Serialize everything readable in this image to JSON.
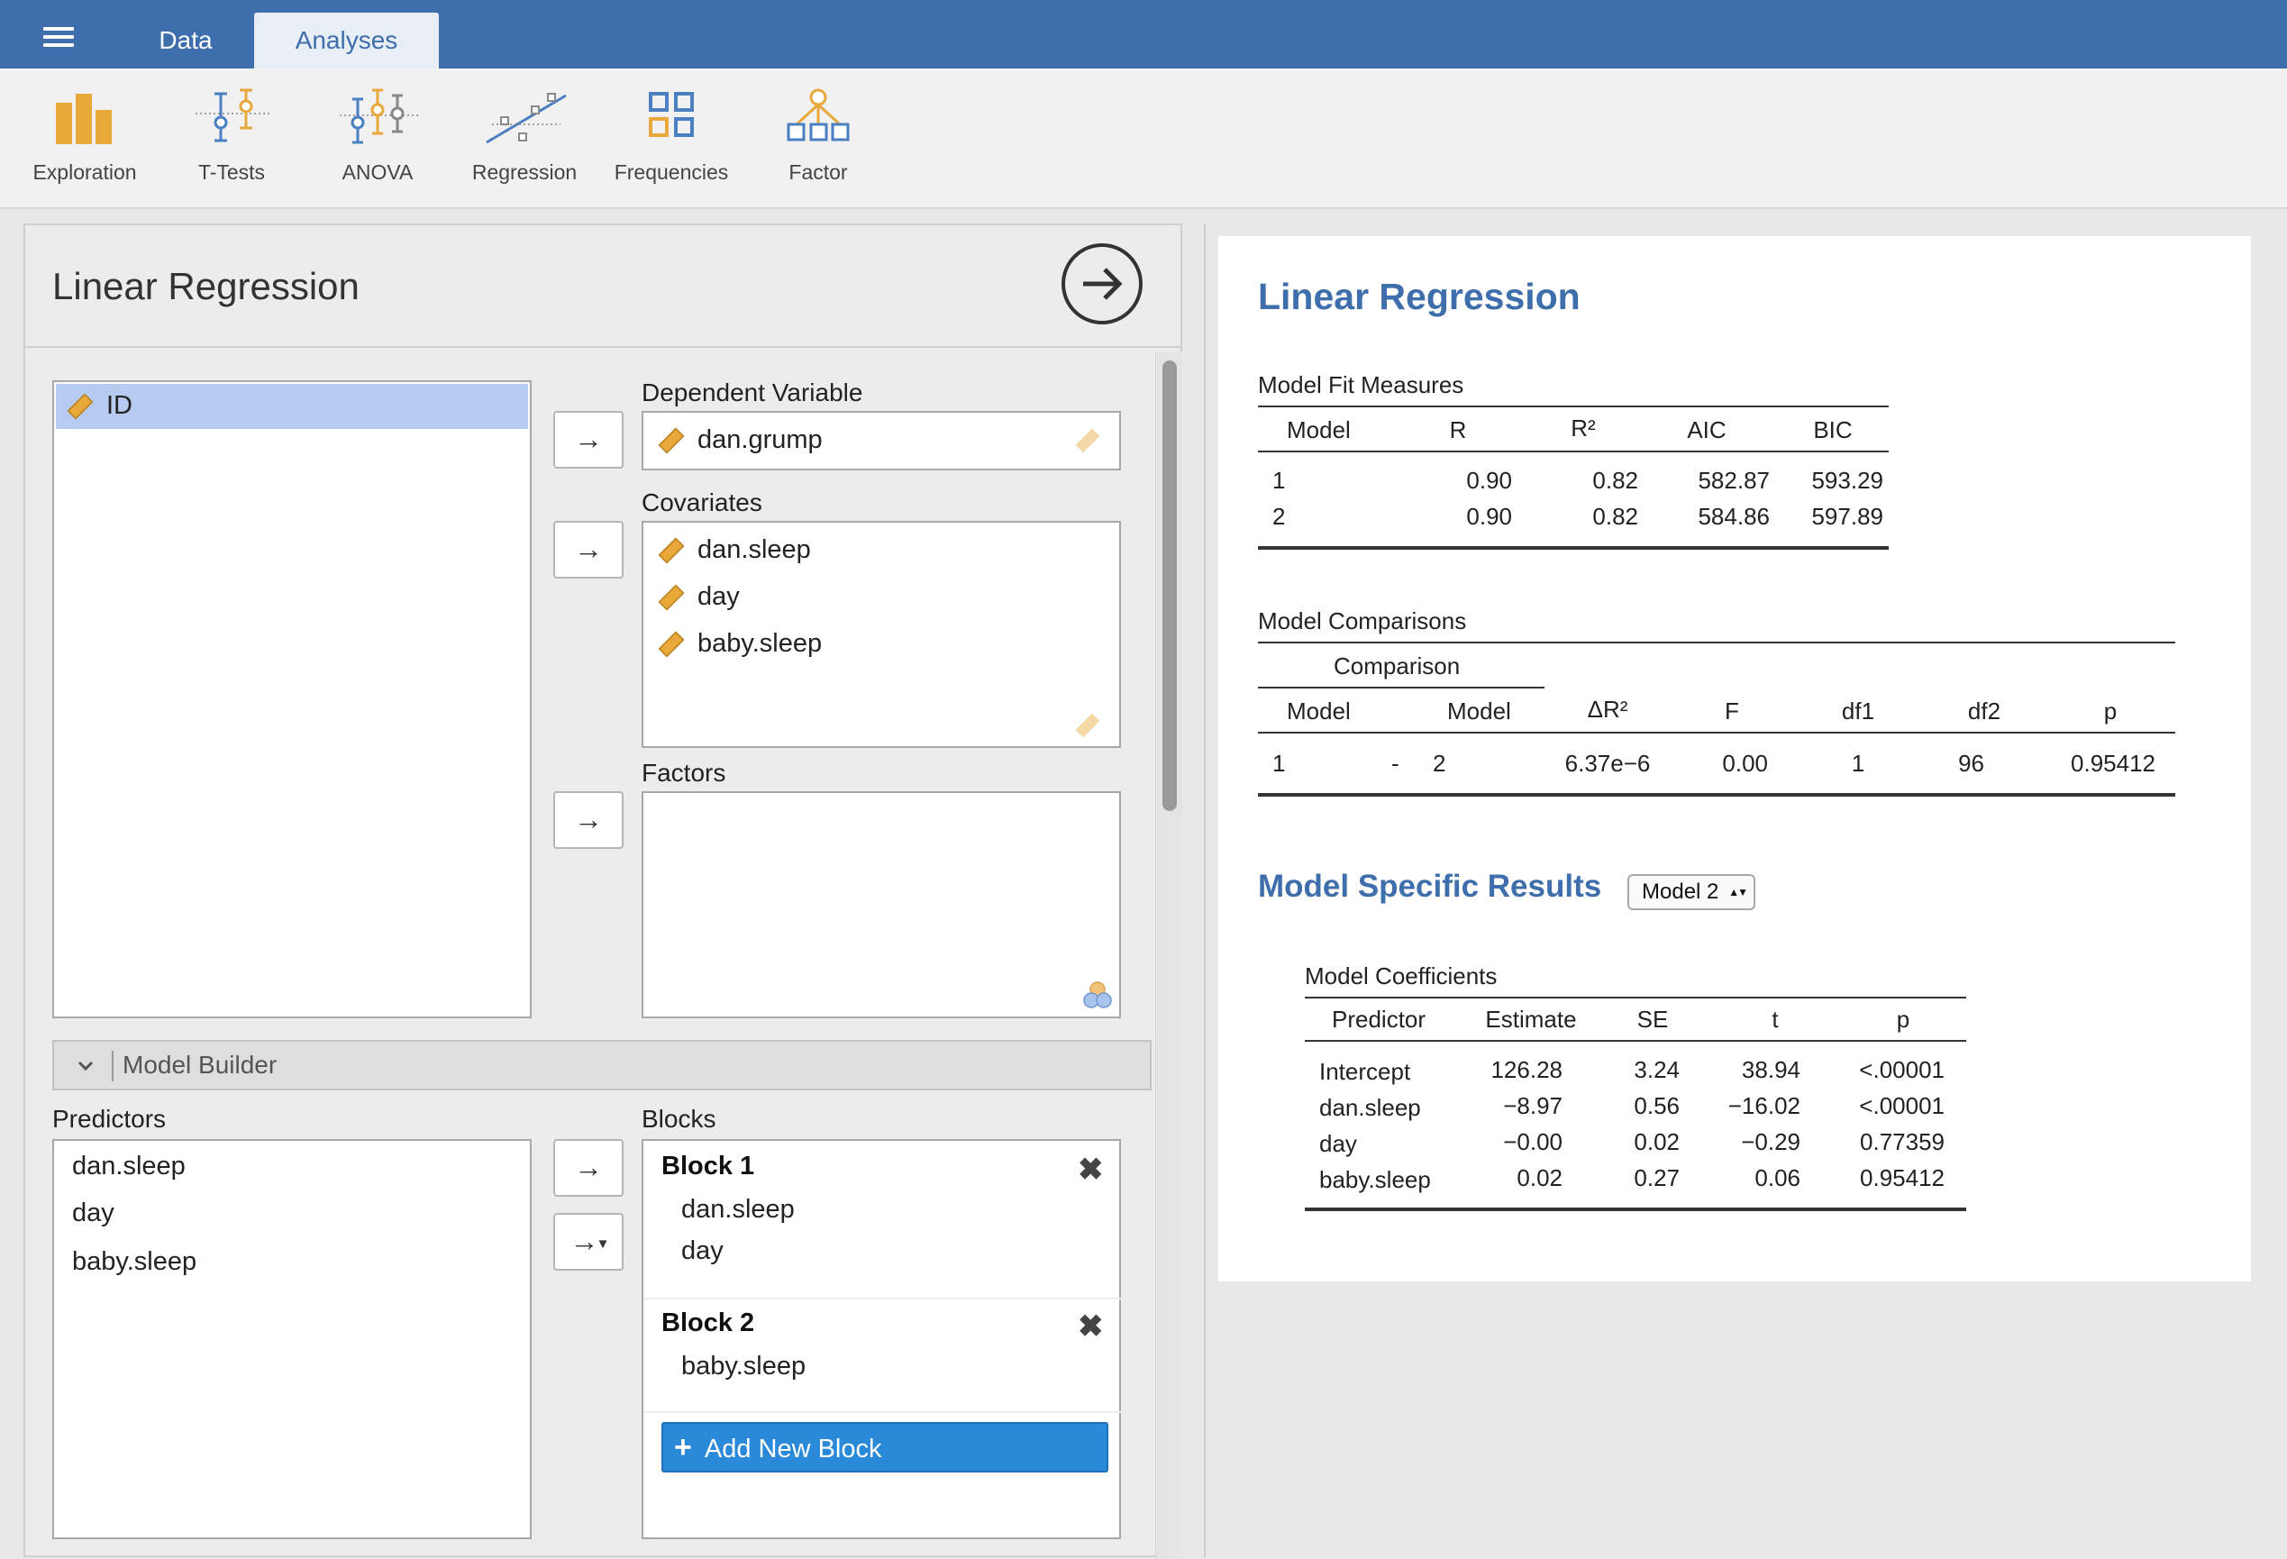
{
  "topbar": {
    "tabs": [
      {
        "label": "Data"
      },
      {
        "label": "Analyses"
      }
    ]
  },
  "ribbon": {
    "items": [
      {
        "label": "Exploration",
        "icon": "bar-chart-icon"
      },
      {
        "label": "T-Tests",
        "icon": "ttest-icon"
      },
      {
        "label": "ANOVA",
        "icon": "anova-icon"
      },
      {
        "label": "Regression",
        "icon": "regression-icon"
      },
      {
        "label": "Frequencies",
        "icon": "frequencies-icon"
      },
      {
        "label": "Factor",
        "icon": "factor-icon"
      }
    ]
  },
  "options": {
    "title": "Linear Regression",
    "variables": [
      "ID"
    ],
    "dependent_label": "Dependent Variable",
    "dependent": "dan.grump",
    "covariates_label": "Covariates",
    "covariates": [
      "dan.sleep",
      "day",
      "baby.sleep"
    ],
    "factors_label": "Factors",
    "model_builder_label": "Model Builder",
    "predictors_label": "Predictors",
    "predictors": [
      "dan.sleep",
      "day",
      "baby.sleep"
    ],
    "blocks_label": "Blocks",
    "blocks": [
      {
        "title": "Block 1",
        "items": [
          "dan.sleep",
          "day"
        ]
      },
      {
        "title": "Block 2",
        "items": [
          "baby.sleep"
        ]
      }
    ],
    "add_block_label": "Add New Block",
    "arrow_symbol": "→",
    "close_symbol": "✖"
  },
  "results": {
    "title": "Linear Regression",
    "fit": {
      "title": "Model Fit Measures",
      "headers": [
        "Model",
        "R",
        "R²",
        "AIC",
        "BIC"
      ],
      "rows": [
        [
          "1",
          "0.90",
          "0.82",
          "582.87",
          "593.29"
        ],
        [
          "2",
          "0.90",
          "0.82",
          "584.86",
          "597.89"
        ]
      ]
    },
    "comparisons": {
      "title": "Model Comparisons",
      "group_header": "Comparison",
      "headers": [
        "Model",
        "Model",
        "ΔR²",
        "F",
        "df1",
        "df2",
        "p"
      ],
      "rows": [
        [
          "1",
          "-",
          "2",
          "6.37e−6",
          "0.00",
          "1",
          "96",
          "0.95412"
        ]
      ]
    },
    "specific": {
      "title": "Model Specific Results",
      "select_value": "Model 2",
      "select_arrows": "▲▼"
    },
    "coefficients": {
      "title": "Model Coefficients",
      "headers": [
        "Predictor",
        "Estimate",
        "SE",
        "t",
        "p"
      ],
      "rows": [
        [
          "Intercept",
          "126.28",
          "3.24",
          "38.94",
          "<.00001"
        ],
        [
          "dan.sleep",
          "−8.97",
          "0.56",
          "−16.02",
          "<.00001"
        ],
        [
          "day",
          "−0.00",
          "0.02",
          "−0.29",
          "0.77359"
        ],
        [
          "baby.sleep",
          "0.02",
          "0.27",
          "0.06",
          "0.95412"
        ]
      ]
    }
  },
  "colors": {
    "topbar": "#3e6eab",
    "accent": "#3e6eab",
    "icon_orange": "#e8a93a",
    "icon_blue": "#4a7fc1",
    "selected_row": "#b6cbef",
    "add_block": "#2a89d8"
  }
}
